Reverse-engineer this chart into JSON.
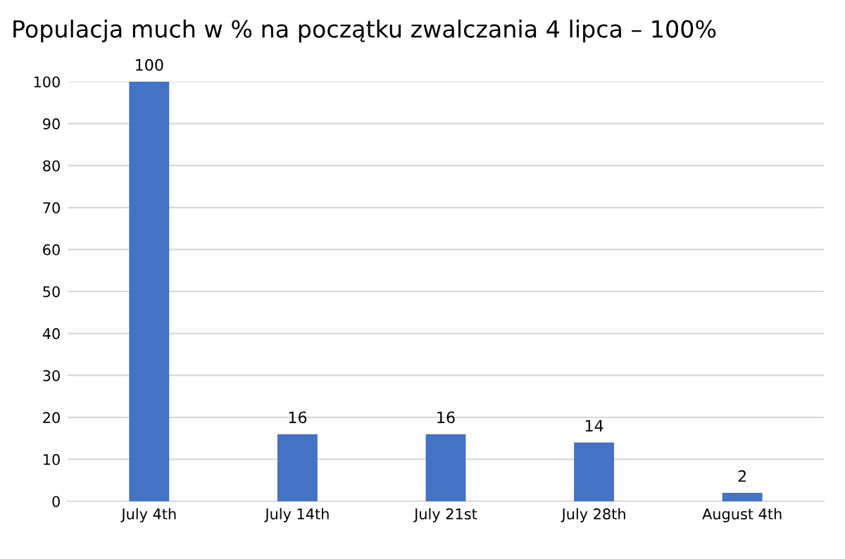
{
  "chart_data": {
    "type": "bar",
    "title": "Populacja much w % na początku zwalczania 4 lipca – 100%",
    "categories": [
      "July 4th",
      "July 14th",
      "July 21st",
      "July 28th",
      "August 4th"
    ],
    "values": [
      100,
      16,
      16,
      14,
      2
    ],
    "color": "#4472c4",
    "ylim": [
      0,
      100
    ],
    "yticks": [
      0,
      10,
      20,
      30,
      40,
      50,
      60,
      70,
      80,
      90,
      100
    ],
    "grid": "y",
    "data_labels": true
  }
}
